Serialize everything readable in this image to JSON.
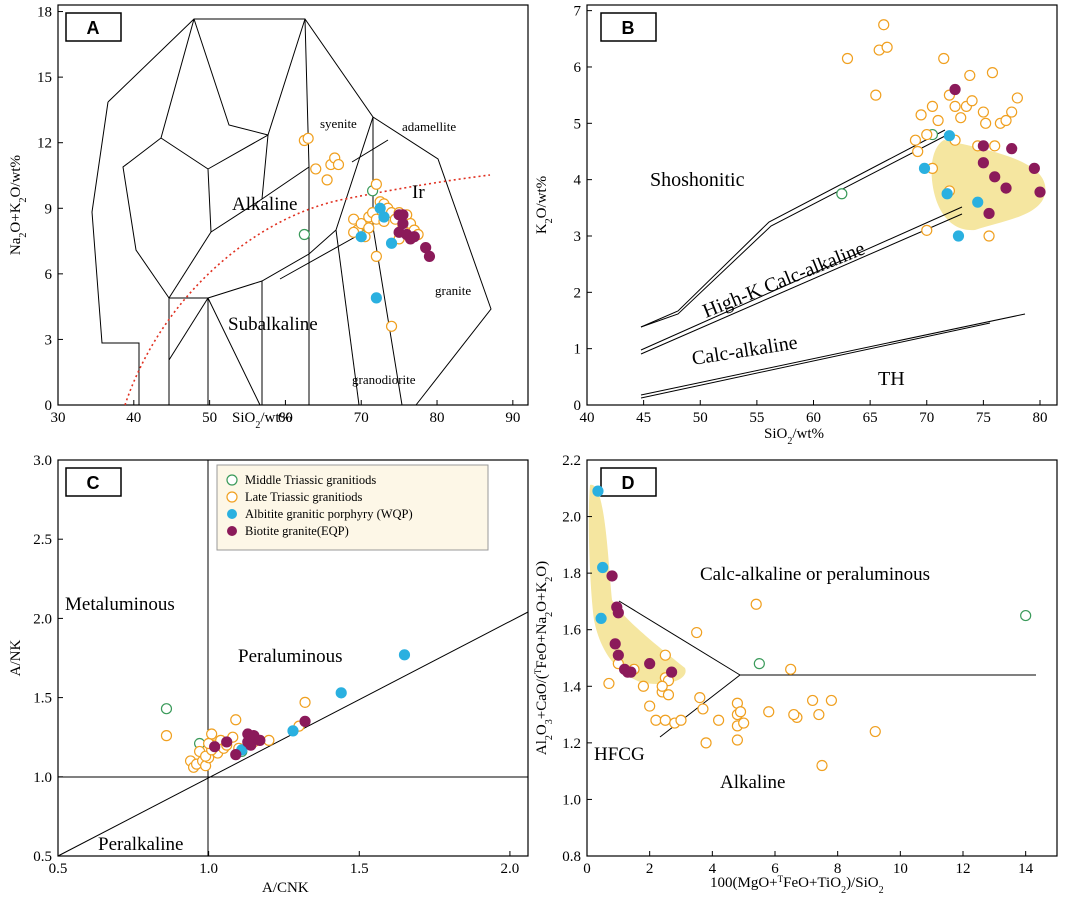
{
  "colors": {
    "middle_triassic": "#3a9a5a",
    "late_triassic": "#f0a020",
    "wqp": "#2ab0e0",
    "eqp": "#8b1a5a",
    "shade": "#f5e6a0",
    "ir_curve": "#e03020"
  },
  "legend": {
    "middle": "Middle Triassic granitiods",
    "late": "Late Triassic granitiods",
    "wqp": "Albitite granitic porphyry (WQP)",
    "eqp": "Biotite granite(EQP)"
  },
  "chart_data": [
    {
      "panel": "A",
      "type": "scatter",
      "xlabel": "SiO2/wt%",
      "ylabel": "Na2O+K2O/wt%",
      "xlim": [
        30,
        92
      ],
      "ylim": [
        0,
        18.3
      ],
      "xticks": [
        "30",
        "40",
        "50",
        "60",
        "70",
        "80",
        "90"
      ],
      "yticks": [
        "0",
        "3",
        "6",
        "9",
        "12",
        "15",
        "18"
      ],
      "fields": {
        "alkaline": "Alkaline",
        "subalkaline": "Subalkaline",
        "ir": "Ir",
        "syenite": "syenite",
        "adamellite": "adamellite",
        "granite": "granite",
        "granodiorite": "granodiorite"
      },
      "series": [
        {
          "name": "Middle Triassic granitiods",
          "points": [
            [
              62.5,
              7.8
            ],
            [
              70,
              7.8
            ],
            [
              71.5,
              9.8
            ]
          ]
        },
        {
          "name": "Late Triassic granitiods",
          "points": [
            [
              62.5,
              12.1
            ],
            [
              63,
              12.2
            ],
            [
              64,
              10.8
            ],
            [
              65.5,
              10.3
            ],
            [
              66,
              11
            ],
            [
              66.5,
              11.3
            ],
            [
              67,
              11
            ],
            [
              69,
              8.5
            ],
            [
              69.5,
              8
            ],
            [
              70,
              8.3
            ],
            [
              70.5,
              7.7
            ],
            [
              71,
              8.6
            ],
            [
              71.5,
              8.8
            ],
            [
              72,
              10.1
            ],
            [
              72,
              8.5
            ],
            [
              72.5,
              9.3
            ],
            [
              73,
              9.2
            ],
            [
              73,
              8.4
            ],
            [
              73.5,
              9
            ],
            [
              74,
              8.8
            ],
            [
              74.5,
              8.5
            ],
            [
              75,
              8.8
            ],
            [
              75.5,
              8.2
            ],
            [
              76,
              8.7
            ],
            [
              76.5,
              8.3
            ],
            [
              77,
              8
            ],
            [
              77.5,
              7.8
            ],
            [
              72,
              6.8
            ],
            [
              74,
              3.6
            ],
            [
              69,
              7.9
            ],
            [
              71,
              8.1
            ],
            [
              75,
              7.6
            ]
          ]
        },
        {
          "name": "Albitite granitic porphyry (WQP)",
          "points": [
            [
              72.5,
              9
            ],
            [
              74,
              7.4
            ],
            [
              72,
              4.9
            ],
            [
              70,
              7.7
            ],
            [
              73,
              8.6
            ]
          ]
        },
        {
          "name": "Biotite granite(EQP)",
          "points": [
            [
              75,
              8.7
            ],
            [
              75.5,
              8.3
            ],
            [
              75,
              7.9
            ],
            [
              76,
              7.8
            ],
            [
              76.5,
              7.6
            ],
            [
              77,
              7.7
            ],
            [
              78.5,
              7.2
            ],
            [
              79,
              6.8
            ],
            [
              75.5,
              8.7
            ]
          ]
        }
      ]
    },
    {
      "panel": "B",
      "type": "scatter",
      "xlabel": "SiO2/wt%",
      "ylabel": "K2O/wt%",
      "xlim": [
        40,
        81.5
      ],
      "ylim": [
        0,
        7.1
      ],
      "xticks": [
        "40",
        "45",
        "50",
        "55",
        "60",
        "65",
        "70",
        "75",
        "80"
      ],
      "yticks": [
        "0",
        "1",
        "2",
        "3",
        "4",
        "5",
        "6",
        "7"
      ],
      "fields": {
        "shoshonitic": "Shoshonitic",
        "highk": "High-K Calc-alkaline",
        "calc": "Calc-alkaline",
        "th": "TH"
      },
      "series": [
        {
          "name": "Middle Triassic granitiods",
          "points": [
            [
              62.5,
              3.75
            ],
            [
              70.5,
              4.8
            ]
          ]
        },
        {
          "name": "Late Triassic granitiods",
          "points": [
            [
              63,
              6.15
            ],
            [
              65.5,
              5.5
            ],
            [
              65.8,
              6.3
            ],
            [
              66.2,
              6.75
            ],
            [
              66.5,
              6.35
            ],
            [
              69,
              4.7
            ],
            [
              69.2,
              4.5
            ],
            [
              69.5,
              5.15
            ],
            [
              70,
              4.8
            ],
            [
              70.5,
              5.3
            ],
            [
              71,
              5.05
            ],
            [
              71.5,
              6.15
            ],
            [
              72,
              5.5
            ],
            [
              72.5,
              5.3
            ],
            [
              72.5,
              4.7
            ],
            [
              73,
              5.1
            ],
            [
              73.5,
              5.3
            ],
            [
              73.8,
              5.85
            ],
            [
              74,
              5.4
            ],
            [
              74.5,
              4.6
            ],
            [
              75,
              5.2
            ],
            [
              75.2,
              5.0
            ],
            [
              75.8,
              5.9
            ],
            [
              76,
              4.6
            ],
            [
              76.5,
              5.0
            ],
            [
              77,
              5.05
            ],
            [
              77.5,
              5.2
            ],
            [
              78,
              5.45
            ],
            [
              70,
              3.1
            ],
            [
              72,
              3.8
            ],
            [
              75.5,
              3.0
            ],
            [
              70.5,
              4.2
            ]
          ]
        },
        {
          "name": "Albitite granitic porphyry (WQP)",
          "points": [
            [
              69.8,
              4.2
            ],
            [
              72,
              4.78
            ],
            [
              71.8,
              3.75
            ],
            [
              74.5,
              3.6
            ],
            [
              72.8,
              3.0
            ]
          ]
        },
        {
          "name": "Biotite granite(EQP)",
          "points": [
            [
              72.5,
              5.6
            ],
            [
              75,
              4.6
            ],
            [
              75,
              4.3
            ],
            [
              76,
              4.05
            ],
            [
              77.5,
              4.55
            ],
            [
              79.5,
              4.2
            ],
            [
              80,
              3.78
            ],
            [
              77,
              3.85
            ],
            [
              75.5,
              3.4
            ]
          ]
        }
      ]
    },
    {
      "panel": "C",
      "type": "scatter",
      "xlabel": "A/CNK",
      "ylabel": "A/NK",
      "xlim": [
        0.5,
        2.06
      ],
      "ylim": [
        0.5,
        3.0
      ],
      "xticks": [
        "0.5",
        "1.0",
        "1.5",
        "2.0"
      ],
      "yticks": [
        "0.5",
        "1.0",
        "1.5",
        "2.0",
        "2.5",
        "3.0"
      ],
      "fields": {
        "metaluminous": "Metaluminous",
        "peraluminous": "Peraluminous",
        "peralkaline": "Peralkaline"
      },
      "series": [
        {
          "name": "Middle Triassic granitiods",
          "points": [
            [
              0.86,
              1.43
            ],
            [
              0.97,
              1.21
            ],
            [
              1.11,
              1.16
            ]
          ]
        },
        {
          "name": "Late Triassic granitiods",
          "points": [
            [
              0.86,
              1.26
            ],
            [
              0.94,
              1.1
            ],
            [
              0.95,
              1.06
            ],
            [
              0.96,
              1.08
            ],
            [
              0.97,
              1.16
            ],
            [
              0.98,
              1.1
            ],
            [
              0.99,
              1.07
            ],
            [
              1.0,
              1.12
            ],
            [
              1.01,
              1.27
            ],
            [
              1.02,
              1.2
            ],
            [
              1.03,
              1.15
            ],
            [
              1.04,
              1.23
            ],
            [
              1.05,
              1.18
            ],
            [
              1.06,
              1.2
            ],
            [
              1.08,
              1.25
            ],
            [
              1.09,
              1.36
            ],
            [
              1.1,
              1.18
            ],
            [
              1.15,
              1.22
            ],
            [
              1.2,
              1.23
            ],
            [
              1.3,
              1.32
            ],
            [
              1.32,
              1.47
            ],
            [
              0.99,
              1.13
            ],
            [
              1.01,
              1.17
            ],
            [
              1.0,
              1.21
            ]
          ]
        },
        {
          "name": "Albitite granitic porphyry (WQP)",
          "points": [
            [
              1.11,
              1.17
            ],
            [
              1.28,
              1.29
            ],
            [
              1.44,
              1.53
            ],
            [
              1.65,
              1.77
            ]
          ]
        },
        {
          "name": "Biotite granite(EQP)",
          "points": [
            [
              1.02,
              1.19
            ],
            [
              1.06,
              1.22
            ],
            [
              1.09,
              1.14
            ],
            [
              1.13,
              1.27
            ],
            [
              1.14,
              1.2
            ],
            [
              1.15,
              1.26
            ],
            [
              1.17,
              1.23
            ],
            [
              1.32,
              1.35
            ],
            [
              1.13,
              1.22
            ]
          ]
        }
      ]
    },
    {
      "panel": "D",
      "type": "scatter",
      "xlabel": "100(MgO+TFeO+TiO2)/SiO2",
      "ylabel": "Al2O3+CaO/(TFeO+Na2O+K2O)",
      "xlim": [
        0,
        15
      ],
      "ylim": [
        0.8,
        2.2
      ],
      "xticks": [
        "0",
        "2",
        "4",
        "6",
        "8",
        "10",
        "12",
        "14"
      ],
      "yticks": [
        "0.8",
        "1.0",
        "1.2",
        "1.4",
        "1.6",
        "1.8",
        "2.0",
        "2.2"
      ],
      "fields": {
        "calc": "Calc-alkaline or peraluminous",
        "hfcg": "HFCG",
        "alkaline": "Alkaline"
      },
      "series": [
        {
          "name": "Middle Triassic granitiods",
          "points": [
            [
              5.5,
              1.48
            ],
            [
              14,
              1.65
            ]
          ]
        },
        {
          "name": "Late Triassic granitiods",
          "points": [
            [
              0.7,
              1.41
            ],
            [
              1.0,
              1.48
            ],
            [
              1.5,
              1.46
            ],
            [
              1.8,
              1.4
            ],
            [
              2.0,
              1.33
            ],
            [
              2.2,
              1.28
            ],
            [
              2.4,
              1.38
            ],
            [
              2.5,
              1.43
            ],
            [
              2.5,
              1.51
            ],
            [
              2.6,
              1.42
            ],
            [
              2.6,
              1.37
            ],
            [
              2.5,
              1.28
            ],
            [
              2.8,
              1.27
            ],
            [
              3.0,
              1.28
            ],
            [
              3.5,
              1.59
            ],
            [
              3.6,
              1.36
            ],
            [
              3.7,
              1.32
            ],
            [
              3.8,
              1.2
            ],
            [
              4.2,
              1.28
            ],
            [
              4.8,
              1.34
            ],
            [
              4.8,
              1.3
            ],
            [
              4.8,
              1.26
            ],
            [
              4.8,
              1.21
            ],
            [
              5.0,
              1.27
            ],
            [
              5.4,
              1.69
            ],
            [
              5.8,
              1.31
            ],
            [
              6.5,
              1.46
            ],
            [
              6.7,
              1.29
            ],
            [
              7.2,
              1.35
            ],
            [
              7.4,
              1.3
            ],
            [
              7.5,
              1.12
            ],
            [
              7.8,
              1.35
            ],
            [
              9.2,
              1.24
            ],
            [
              2.4,
              1.4
            ],
            [
              4.9,
              1.31
            ],
            [
              6.6,
              1.3
            ]
          ]
        },
        {
          "name": "Albitite granitic porphyry (WQP)",
          "points": [
            [
              0.35,
              2.09
            ],
            [
              0.5,
              1.82
            ],
            [
              0.45,
              1.64
            ]
          ]
        },
        {
          "name": "Biotite granite(EQP)",
          "points": [
            [
              0.8,
              1.79
            ],
            [
              0.95,
              1.68
            ],
            [
              0.9,
              1.55
            ],
            [
              1.0,
              1.51
            ],
            [
              1.0,
              1.66
            ],
            [
              1.3,
              1.45
            ],
            [
              1.4,
              1.45
            ],
            [
              2.0,
              1.48
            ],
            [
              2.7,
              1.45
            ],
            [
              1.2,
              1.46
            ]
          ]
        }
      ]
    }
  ]
}
